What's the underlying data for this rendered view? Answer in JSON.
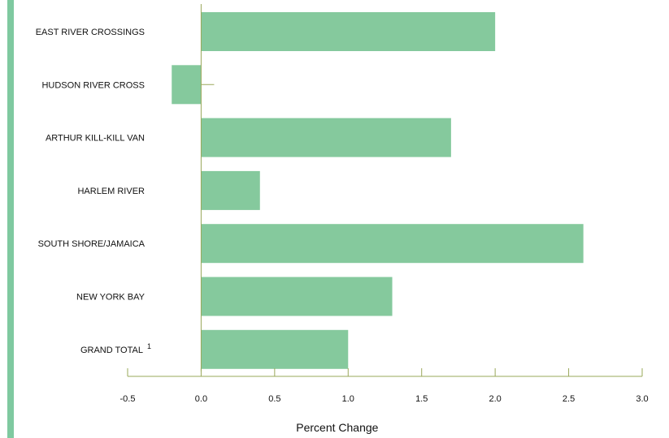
{
  "chart_data": {
    "type": "bar",
    "orientation": "horizontal",
    "categories": [
      "EAST RIVER CROSSINGS",
      "HUDSON RIVER CROSS",
      "ARTHUR KILL-KILL VAN",
      "HARLEM RIVER",
      "SOUTH SHORE/JAMAICA",
      "NEW YORK BAY",
      "GRAND TOTAL"
    ],
    "category_superscripts": [
      "",
      "",
      "",
      "",
      "",
      "",
      "1"
    ],
    "values": [
      2.0,
      -0.2,
      1.7,
      0.4,
      2.6,
      1.3,
      1.0
    ],
    "xlabel": "Percent Change",
    "xlim": [
      -0.5,
      3.0
    ],
    "xticks": [
      "-0.5",
      "0.0",
      "0.5",
      "1.0",
      "1.5",
      "2.0",
      "2.5",
      "3.0"
    ],
    "grid": false,
    "bar_color": "#85c99d",
    "axis_color": "#9aa85a",
    "accent_color": "#7fc9a0"
  }
}
